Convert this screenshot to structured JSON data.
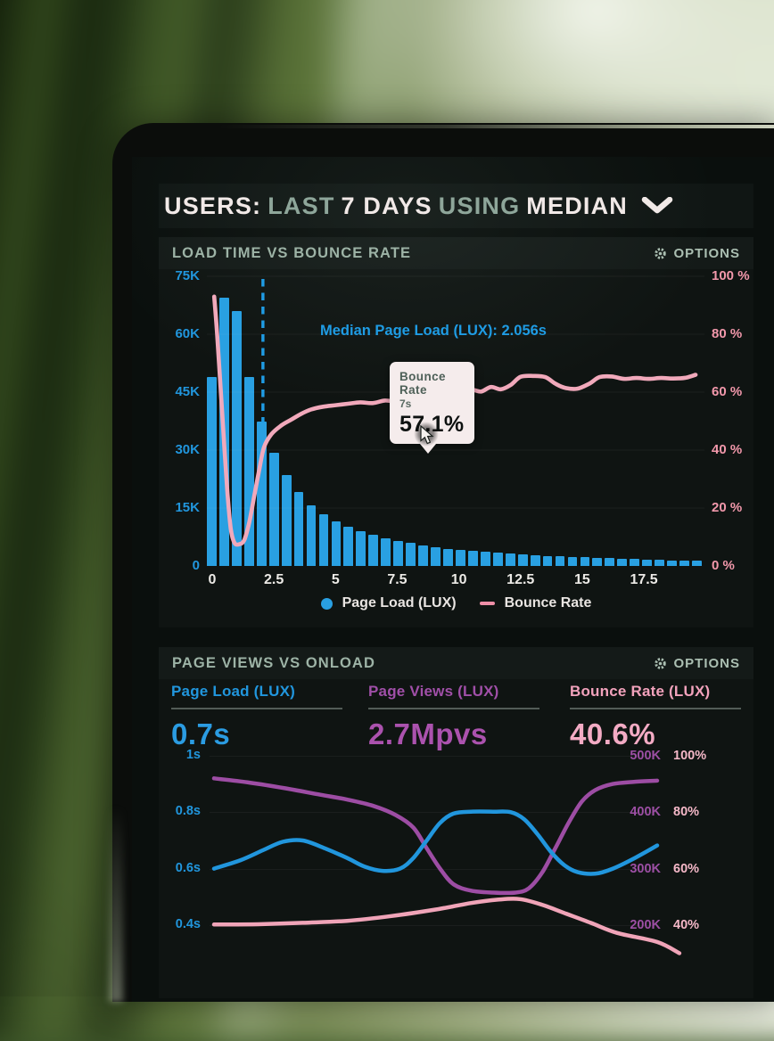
{
  "screen": {
    "header": {
      "segments": [
        {
          "text": "USERS:",
          "bright": true
        },
        {
          "text": "LAST",
          "bright": false
        },
        {
          "text": "7 DAYS",
          "bright": true
        },
        {
          "text": "USING",
          "bright": false
        },
        {
          "text": "MEDIAN",
          "bright": true
        }
      ],
      "dropdown_icon": "chevron-down"
    },
    "panel1": {
      "title": "LOAD TIME VS BOUNCE RATE",
      "options_label": "OPTIONS",
      "options_icon": "gear",
      "median_annotation": "Median Page Load (LUX): 2.056s",
      "tooltip": {
        "title": "Bounce Rate",
        "x_value": "7s",
        "value": "57.1%"
      },
      "legend": [
        {
          "label": "Page Load (LUX)",
          "marker": "dot",
          "color": "#29a0e2"
        },
        {
          "label": "Bounce Rate",
          "marker": "line",
          "color": "#ee8fa7"
        }
      ]
    },
    "panel2": {
      "title": "PAGE VIEWS VS ONLOAD",
      "options_label": "OPTIONS",
      "options_icon": "gear",
      "metrics": [
        {
          "label": "Page Load (LUX)",
          "value": "0.7s",
          "color": "#2b9ce2",
          "label_color": "#2196dd"
        },
        {
          "label": "Page Views (LUX)",
          "value": "2.7Mpvs",
          "color": "#ab52ae",
          "label_color": "#a04fa8"
        },
        {
          "label": "Bounce Rate (LUX)",
          "value": "40.6%",
          "color": "#f3abc4",
          "label_color": "#f2a2bc"
        }
      ]
    }
  },
  "chart_data": [
    {
      "name": "load_time_vs_bounce_rate",
      "type": "bar+line",
      "y_left": {
        "ticks": [
          "75K",
          "60K",
          "45K",
          "30K",
          "15K",
          "0"
        ],
        "fracs": [
          1.0,
          0.8,
          0.6,
          0.4,
          0.2,
          0.0
        ],
        "max": 75000
      },
      "y_right": {
        "ticks": [
          "100 %",
          "80 %",
          "60 %",
          "40 %",
          "20 %",
          "0 %"
        ],
        "fracs": [
          1.0,
          0.8,
          0.6,
          0.4,
          0.2,
          0.0
        ],
        "max": 100
      },
      "x_ticks": {
        "labels": [
          "0",
          "2.5",
          "5",
          "7.5",
          "10",
          "12.5",
          "15",
          "17.5"
        ],
        "values": [
          0,
          2.5,
          5,
          7.5,
          10,
          12.5,
          15,
          17.5
        ],
        "max": 20
      },
      "bars": {
        "series": "Page Load (LUX)",
        "color": "#29a0e2",
        "bin_width": 0.5,
        "values_k": [
          49,
          69.5,
          66,
          49,
          37.5,
          29.4,
          23.6,
          19.2,
          15.7,
          13.4,
          11.6,
          10.2,
          9.0,
          8.0,
          7.2,
          6.5,
          5.9,
          5.4,
          4.9,
          4.5,
          4.2,
          3.9,
          3.6,
          3.4,
          3.2,
          3.0,
          2.8,
          2.6,
          2.5,
          2.3,
          2.2,
          2.1,
          2.0,
          1.9,
          1.8,
          1.7,
          1.6,
          1.5,
          1.4,
          1.3
        ]
      },
      "line": {
        "series": "Bounce Rate",
        "color": "#f1a9bb",
        "points": [
          [
            0.08,
            93
          ],
          [
            0.2,
            80
          ],
          [
            0.35,
            60
          ],
          [
            0.5,
            40
          ],
          [
            0.62,
            25
          ],
          [
            0.75,
            13
          ],
          [
            0.9,
            8
          ],
          [
            1.1,
            7.5
          ],
          [
            1.3,
            9
          ],
          [
            1.5,
            15
          ],
          [
            1.7,
            24
          ],
          [
            1.9,
            33
          ],
          [
            2.1,
            41
          ],
          [
            2.4,
            45.5
          ],
          [
            2.8,
            48.5
          ],
          [
            3.2,
            50.5
          ],
          [
            3.6,
            52.5
          ],
          [
            4.0,
            54
          ],
          [
            4.5,
            55
          ],
          [
            5.0,
            55.5
          ],
          [
            5.5,
            56
          ],
          [
            6.0,
            56.5
          ],
          [
            6.5,
            56.2
          ],
          [
            7.0,
            57.1
          ],
          [
            7.4,
            56.6
          ],
          [
            7.8,
            55.8
          ],
          [
            8.2,
            55.2
          ],
          [
            8.6,
            56
          ],
          [
            9.0,
            57.5
          ],
          [
            9.4,
            58.3
          ],
          [
            9.7,
            57.8
          ],
          [
            10.1,
            59
          ],
          [
            10.5,
            60.8
          ],
          [
            10.9,
            60.2
          ],
          [
            11.3,
            61.8
          ],
          [
            11.7,
            61
          ],
          [
            12.1,
            62.5
          ],
          [
            12.5,
            65.3
          ],
          [
            13.0,
            65.6
          ],
          [
            13.5,
            65.2
          ],
          [
            13.9,
            63
          ],
          [
            14.3,
            61.5
          ],
          [
            14.8,
            61.2
          ],
          [
            15.3,
            63
          ],
          [
            15.7,
            65.2
          ],
          [
            16.2,
            65.4
          ],
          [
            16.7,
            64.6
          ],
          [
            17.2,
            64.9
          ],
          [
            17.7,
            64.6
          ],
          [
            18.2,
            64.9
          ],
          [
            18.7,
            64.7
          ],
          [
            19.2,
            65
          ],
          [
            19.6,
            66
          ]
        ]
      },
      "median": {
        "x": 2.056,
        "label": "Median Page Load (LUX): 2.056s",
        "color": "#1f9ce4"
      },
      "tooltip_point": {
        "x": 7,
        "value_pct": 57.1
      }
    },
    {
      "name": "page_views_vs_onload",
      "type": "line",
      "y_left": {
        "ticks": [
          {
            "label": "1s",
            "s": 1.0
          },
          {
            "label": "0.8s",
            "s": 0.8
          },
          {
            "label": "0.6s",
            "s": 0.6
          },
          {
            "label": "0.4s",
            "s": 0.4
          }
        ]
      },
      "y_right": {
        "ticks": [
          {
            "k": "500K",
            "pct": "100%",
            "s": 1.0
          },
          {
            "k": "400K",
            "pct": "80%",
            "s": 0.8
          },
          {
            "k": "300K",
            "pct": "60%",
            "s": 0.6
          },
          {
            "k": "200K",
            "pct": "40%",
            "s": 0.4
          }
        ]
      },
      "series": [
        {
          "name": "Page Views (LUX)",
          "color": "#9d4da4",
          "width": 4.5,
          "points": [
            [
              0,
              0.92
            ],
            [
              0.08,
              0.905
            ],
            [
              0.16,
              0.885
            ],
            [
              0.24,
              0.862
            ],
            [
              0.3,
              0.845
            ],
            [
              0.36,
              0.822
            ],
            [
              0.41,
              0.79
            ],
            [
              0.45,
              0.745
            ],
            [
              0.48,
              0.672
            ],
            [
              0.51,
              0.6
            ],
            [
              0.54,
              0.545
            ],
            [
              0.58,
              0.522
            ],
            [
              0.63,
              0.515
            ],
            [
              0.68,
              0.515
            ],
            [
              0.71,
              0.53
            ],
            [
              0.74,
              0.585
            ],
            [
              0.77,
              0.672
            ],
            [
              0.8,
              0.762
            ],
            [
              0.83,
              0.838
            ],
            [
              0.86,
              0.878
            ],
            [
              0.9,
              0.9
            ],
            [
              0.95,
              0.908
            ],
            [
              1,
              0.912
            ]
          ]
        },
        {
          "name": "Page Load (LUX)",
          "color": "#2196dd",
          "width": 4.5,
          "points": [
            [
              0,
              0.6
            ],
            [
              0.06,
              0.63
            ],
            [
              0.11,
              0.665
            ],
            [
              0.155,
              0.695
            ],
            [
              0.2,
              0.7
            ],
            [
              0.25,
              0.672
            ],
            [
              0.3,
              0.638
            ],
            [
              0.34,
              0.607
            ],
            [
              0.38,
              0.592
            ],
            [
              0.42,
              0.6
            ],
            [
              0.45,
              0.638
            ],
            [
              0.48,
              0.7
            ],
            [
              0.51,
              0.762
            ],
            [
              0.54,
              0.795
            ],
            [
              0.58,
              0.802
            ],
            [
              0.63,
              0.802
            ],
            [
              0.67,
              0.8
            ],
            [
              0.7,
              0.775
            ],
            [
              0.73,
              0.722
            ],
            [
              0.76,
              0.66
            ],
            [
              0.79,
              0.613
            ],
            [
              0.82,
              0.588
            ],
            [
              0.86,
              0.582
            ],
            [
              0.9,
              0.6
            ],
            [
              0.95,
              0.638
            ],
            [
              1,
              0.682
            ]
          ]
        },
        {
          "name": "Bounce Rate (LUX)",
          "color": "#f0a4b8",
          "width": 4.5,
          "points": [
            [
              0,
              0.402
            ],
            [
              0.1,
              0.403
            ],
            [
              0.2,
              0.408
            ],
            [
              0.3,
              0.415
            ],
            [
              0.4,
              0.432
            ],
            [
              0.5,
              0.455
            ],
            [
              0.58,
              0.478
            ],
            [
              0.64,
              0.49
            ],
            [
              0.69,
              0.492
            ],
            [
              0.74,
              0.472
            ],
            [
              0.79,
              0.443
            ],
            [
              0.85,
              0.408
            ],
            [
              0.91,
              0.372
            ],
            [
              1,
              0.34
            ],
            [
              1.05,
              0.3
            ]
          ]
        }
      ]
    }
  ],
  "colors": {
    "screen_bg": "#0a0f0d",
    "panel_bg": "rgba(205,228,213,0.028)",
    "blue": "#2196dd",
    "pink": "#f298ab",
    "purple": "#9c4fa4",
    "sage": "#9db3a6",
    "bright_text": "#f1e9e7"
  }
}
